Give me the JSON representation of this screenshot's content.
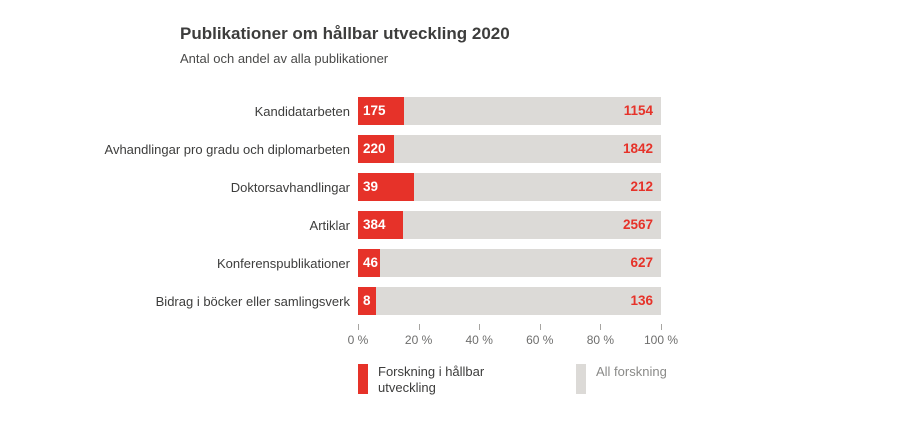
{
  "header": {
    "title": "Publikationer om hållbar utveckling 2020",
    "subtitle": "Antal och andel av alla publikationer"
  },
  "chart_data": {
    "type": "bar",
    "orientation": "horizontal",
    "title": "Publikationer om hållbar utveckling 2020",
    "subtitle": "Antal och andel av alla publikationer",
    "categories": [
      "Kandidatarbeten",
      "Avhandlingar pro gradu och diplomarbeten",
      "Doktorsavhandlingar",
      "Artiklar",
      "Konferenspublikationer",
      "Bidrag i böcker eller samlingsverk"
    ],
    "series": [
      {
        "name": "Forskning i hållbar utveckling",
        "values": [
          175,
          220,
          39,
          384,
          46,
          8
        ],
        "color": "#e63229"
      },
      {
        "name": "All forskning",
        "values": [
          1154,
          1842,
          212,
          2567,
          627,
          136
        ],
        "color": "#dcdad7"
      }
    ],
    "share_percent": [
      15.2,
      11.9,
      18.4,
      15.0,
      7.3,
      5.9
    ],
    "x_axis": {
      "range": [
        0,
        100
      ],
      "unit": "%",
      "tick_labels": [
        "0 %",
        "20 %",
        "40 %",
        "60 %",
        "80 %",
        "100 %"
      ],
      "grid": false
    },
    "legend": {
      "position": "bottom",
      "items": [
        {
          "label": "Forskning i hållbar utveckling",
          "color": "#e63229"
        },
        {
          "label": "All forskning",
          "color": "#dcdad7"
        }
      ]
    }
  },
  "colors": {
    "accent_red": "#e63229",
    "bar_gray": "#dcdad7",
    "text_dark": "#3d3d3c",
    "text_muted": "#6e6e6d"
  }
}
